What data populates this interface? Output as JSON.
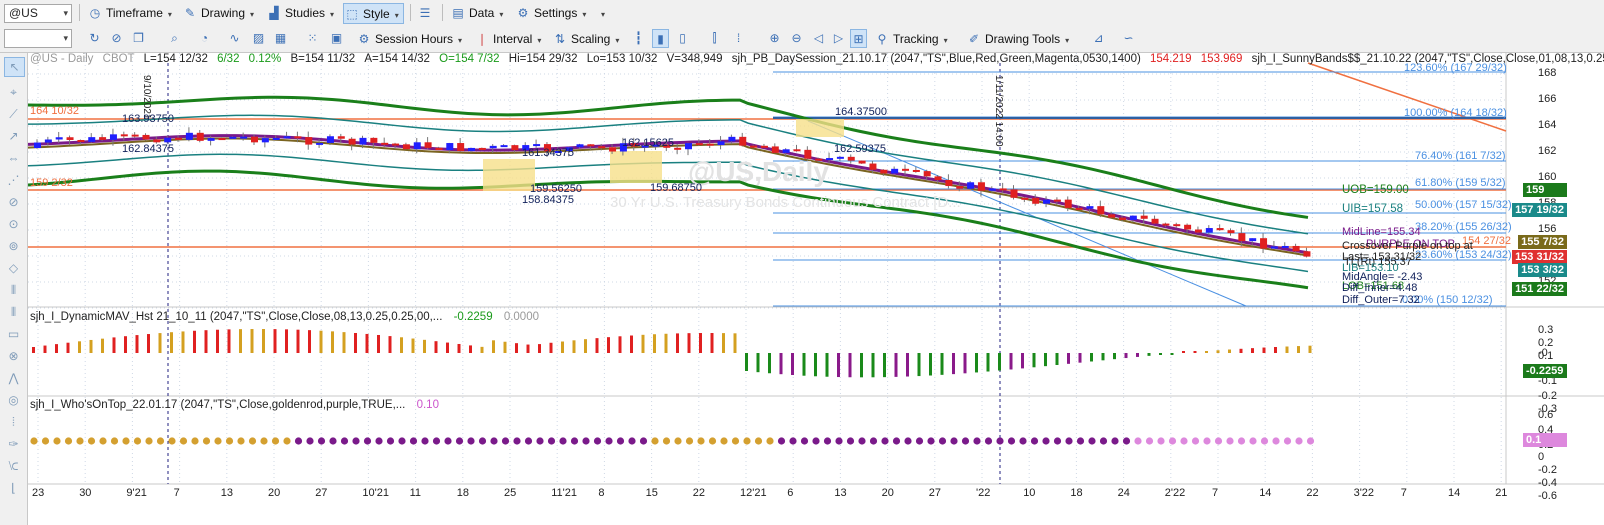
{
  "toolbar1": {
    "symbol": "@US",
    "timeframe": "Timeframe",
    "drawing": "Drawing",
    "studies": "Studies",
    "style": "Style",
    "data": "Data",
    "settings": "Settings"
  },
  "toolbar2": {
    "session_hours": "Session Hours",
    "interval": "Interval",
    "scaling": "Scaling",
    "tracking": "Tracking",
    "drawing_tools": "Drawing Tools"
  },
  "chart": {
    "header": {
      "symbol_desc": "@US - Daily",
      "exchange": "CBOT",
      "last": "L=154 12/32",
      "change": "6/32",
      "change_pct": "0.12%",
      "bid": "B=154 11/32",
      "ask": "A=154 14/32",
      "open": "O=154 7/32",
      "high": "Hi=154 29/32",
      "low": "Lo=153 10/32",
      "volume": "V=348,949",
      "study1": "sjh_PB_DaySession_21.10.17 (2047,\"TS\",Blue,Red,Green,Magenta,0530,1400)",
      "study1_val1": "154.219",
      "study1_val2": "153.969",
      "study2": "sjh_I_SunnyBands$$_21.10.22 (2047,\"TS\",Close,Close,01,08,13,0.25..."
    },
    "watermark": "@US,Daily",
    "watermark_sub": "30 Yr U.S. Treasury Bonds Continuous Contract [D...",
    "vline1_label": "9/10/2021",
    "vline2_label": "1/11/2022 14:00",
    "left_labels": [
      "164 10/32",
      "159 2/32"
    ],
    "annotations": [
      "163.93750",
      "162.84375",
      "161.34375",
      "159.56250",
      "158.84375",
      "162.15625",
      "159.68750",
      "164.37500",
      "162.59375"
    ],
    "fib": [
      {
        "label": "123.60% (167 29/32)"
      },
      {
        "label": "100.00% (164 18/32)"
      },
      {
        "label": "76.40% (161 7/32)"
      },
      {
        "label": "61.80% (159 5/32)"
      },
      {
        "label": "50.00% (157 15/32)"
      },
      {
        "label": "38.20% (155 26/32)"
      },
      {
        "label": "23.60% (153 24/32)"
      },
      {
        "label": "0.00% (150 12/32)"
      }
    ],
    "band_text": {
      "uob": "UOB=159.00",
      "uib": "UIB=157.58",
      "midline": "MidLine=155.34",
      "purple_on_top": "PURPLE ON TOP",
      "level_orange": "154 27/32",
      "crossover": "Crossover Purple on top at",
      "last_value": "Last=  153 31/32",
      "trend_line": "TL(Rt) 155.37",
      "lib": "LIB=153.10",
      "midangle": "MidAngle= -2.43",
      "lob": "LOB=151.68",
      "diff_inner": "Diff_Inner=4.48",
      "diff_outer": "Diff_Outer=7.32"
    },
    "price_axis": [
      "168",
      "166",
      "164",
      "162",
      "160",
      "158",
      "156",
      "154",
      "152"
    ],
    "price_tags": [
      {
        "text": "159",
        "color": "#1b7a1b"
      },
      {
        "text": "157 19/32",
        "color": "#1a8a8a"
      },
      {
        "text": "155 7/32",
        "color": "#7a6a1a"
      },
      {
        "text": "153 31/32",
        "color": "#e03030"
      },
      {
        "text": "153 3/32",
        "color": "#1a8a8a"
      },
      {
        "text": "151 22/32",
        "color": "#1b7a1b"
      }
    ],
    "indicator1": {
      "title": "sjh_I_DynamicMAV_Hst 21_10_11 (2047,\"TS\",Close,Close,08,13,0.25,0.25,00,...",
      "value1": "-0.2259",
      "value2": "0.0000",
      "axis": [
        "0.3",
        "0.2",
        "0.1",
        "-0",
        "-0.1",
        "-0.2",
        "-0.3"
      ],
      "tag": "-0.2259"
    },
    "indicator2": {
      "title": "sjh_I_Who'sOnTop_22.01.17 (2047,\"TS\",Close,goldenrod,purple,TRUE,...",
      "value": "0.10",
      "axis": [
        "0.6",
        "0.4",
        "0.2",
        "0",
        "-0.2",
        "-0.4",
        "-0.6"
      ],
      "tag": "0.1"
    },
    "time_axis": [
      "23",
      "30",
      "9'21",
      "7",
      "13",
      "20",
      "27",
      "10'21",
      "11",
      "18",
      "25",
      "11'21",
      "8",
      "15",
      "22",
      "12'21",
      "6",
      "13",
      "20",
      "27",
      "'22",
      "10",
      "18",
      "24",
      "2'22",
      "7",
      "14",
      "22",
      "3'22",
      "7",
      "14",
      "21"
    ]
  },
  "colors": {
    "up": "#1f1fff",
    "down": "#e02020",
    "outer_band": "#1a7f1a",
    "inner_band": "#1a8080",
    "midline": "#7a6420",
    "purple": "#7a1a8a",
    "fib": "#4a90e2",
    "orange": "#f07040"
  }
}
